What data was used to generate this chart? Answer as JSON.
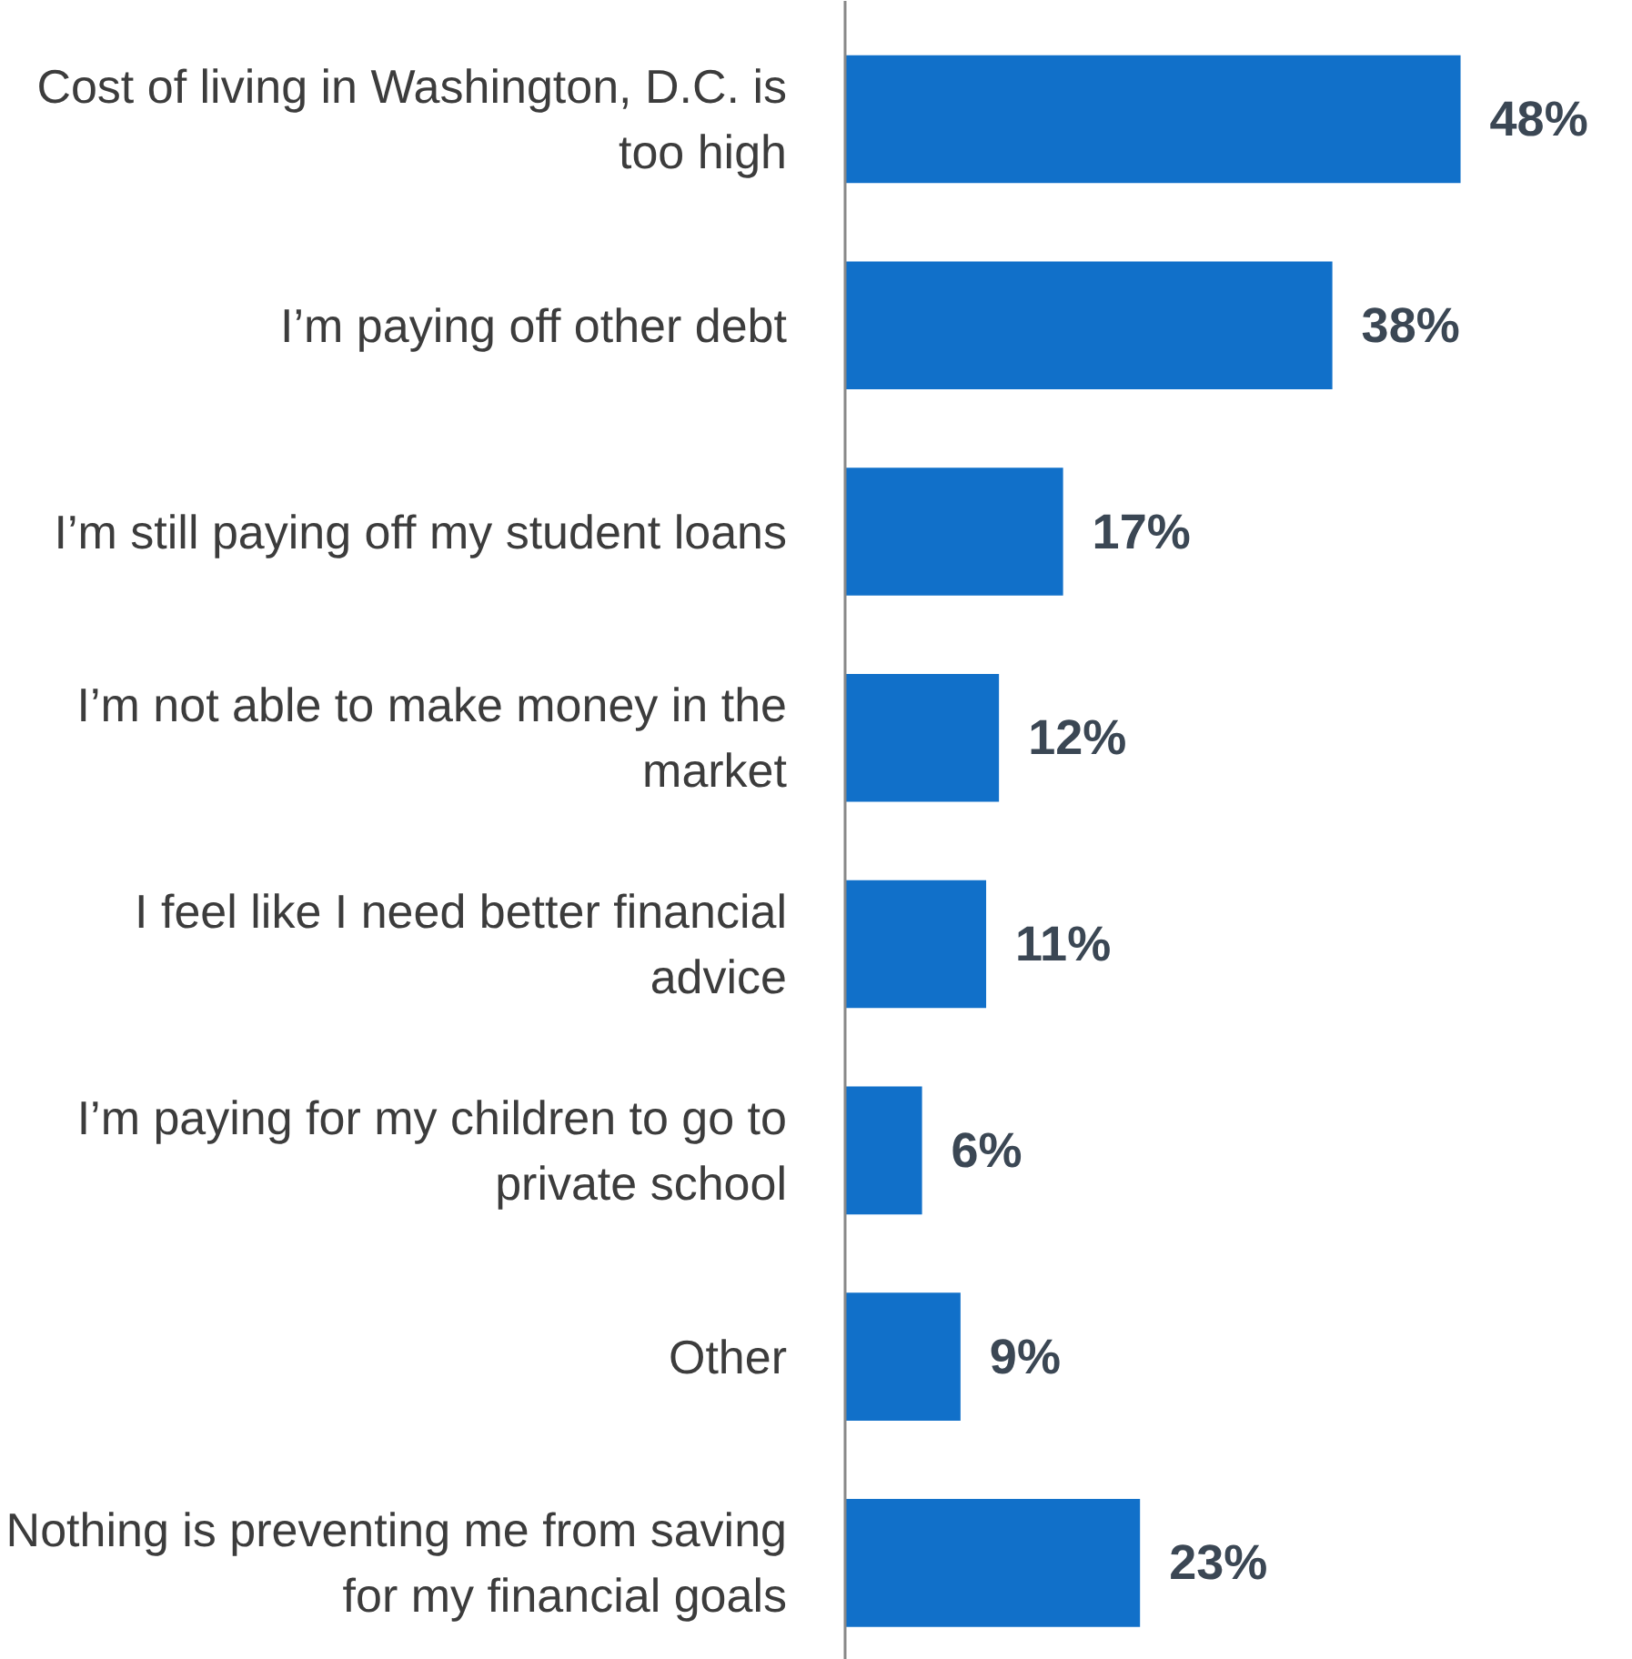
{
  "chart_data": {
    "type": "bar",
    "orientation": "horizontal",
    "categories": [
      "Cost of living in Washington, D.C. is too high",
      "I’m paying off other debt",
      "I’m still paying off my student loans",
      "I’m not able to make money in the market",
      "I feel like I need better financial advice",
      "I’m paying for my children to go to private school",
      "Other",
      "Nothing is preventing me from saving for my financial goals"
    ],
    "values": [
      48,
      38,
      17,
      12,
      11,
      6,
      9,
      23
    ],
    "value_labels": [
      "48%",
      "38%",
      "17%",
      "12%",
      "11%",
      "6%",
      "9%",
      "23%"
    ],
    "color": "#1170c9",
    "grid": false
  }
}
